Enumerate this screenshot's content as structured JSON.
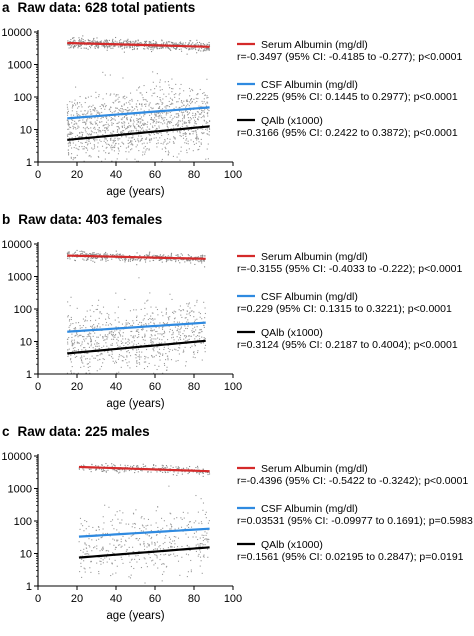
{
  "panels": [
    {
      "letter": "a",
      "title": "Raw data: 628 total patients",
      "xlabel": "age (years)",
      "n_points": 628,
      "age_range": [
        15,
        88
      ]
    },
    {
      "letter": "b",
      "title": "Raw data: 403 females",
      "xlabel": "age (years)",
      "n_points": 403,
      "age_range": [
        15,
        86
      ]
    },
    {
      "letter": "c",
      "title": "Raw data: 225 males",
      "xlabel": "age (years)",
      "n_points": 225,
      "age_range": [
        21,
        88
      ]
    }
  ],
  "chart_data": [
    {
      "type": "scatter",
      "title": "Raw data: 628 total patients",
      "xlabel": "age (years)",
      "ylabel": "",
      "xlim": [
        0,
        100
      ],
      "ylim": [
        1,
        10000
      ],
      "yscale": "log",
      "xticks": [
        "0",
        "20",
        "40",
        "60",
        "80",
        "100"
      ],
      "yticks": [
        "1",
        "10",
        "100",
        "1000",
        "10000"
      ],
      "grid": false,
      "legend_position": "right",
      "series": [
        {
          "name": "Serum Albumin (mg/dl)",
          "stat": "r=-0.3497 (95% CI: -0.4185 to -0.277); p<0.0001",
          "color": "#d42a2a",
          "fit": {
            "x": [
              15,
              88
            ],
            "y": [
              4600,
              3500
            ]
          },
          "center": 4300,
          "spread": 0.07
        },
        {
          "name": "CSF Albumin (mg/dl)",
          "stat": "r=0.2225 (95% CI: 0.1445 to 0.2977); p<0.0001",
          "color": "#2f8ae0",
          "fit": {
            "x": [
              15,
              88
            ],
            "y": [
              22,
              48
            ]
          },
          "center": 30,
          "spread": 0.42
        },
        {
          "name": "QAlb (x1000)",
          "stat": "r=0.3166 (95% CI: 0.2422 to 0.3872); p<0.0001",
          "color": "#000000",
          "fit": {
            "x": [
              15,
              88
            ],
            "y": [
              4.8,
              12.5
            ]
          },
          "center": 8,
          "spread": 0.4
        }
      ]
    },
    {
      "type": "scatter",
      "title": "Raw data: 403 females",
      "xlabel": "age (years)",
      "ylabel": "",
      "xlim": [
        0,
        100
      ],
      "ylim": [
        1,
        10000
      ],
      "yscale": "log",
      "xticks": [
        "0",
        "20",
        "40",
        "60",
        "80",
        "100"
      ],
      "yticks": [
        "1",
        "10",
        "100",
        "1000",
        "10000"
      ],
      "grid": false,
      "legend_position": "right",
      "series": [
        {
          "name": "Serum Albumin (mg/dl)",
          "stat": "r=-0.3155 (95% CI: -0.4033 to -0.222); p<0.0001",
          "color": "#d42a2a",
          "fit": {
            "x": [
              15,
              86
            ],
            "y": [
              4400,
              3500
            ]
          },
          "center": 4200,
          "spread": 0.07
        },
        {
          "name": "CSF Albumin (mg/dl)",
          "stat": "r=0.229 (95% CI: 0.1315 to 0.3221); p<0.0001",
          "color": "#2f8ae0",
          "fit": {
            "x": [
              15,
              86
            ],
            "y": [
              20,
              38
            ]
          },
          "center": 28,
          "spread": 0.4
        },
        {
          "name": "QAlb (x1000)",
          "stat": "r=0.3124 (95% CI: 0.2187 to 0.4004); p<0.0001",
          "color": "#000000",
          "fit": {
            "x": [
              15,
              86
            ],
            "y": [
              4.3,
              10.5
            ]
          },
          "center": 7,
          "spread": 0.38
        }
      ]
    },
    {
      "type": "scatter",
      "title": "Raw data: 225 males",
      "xlabel": "age (years)",
      "ylabel": "",
      "xlim": [
        0,
        100
      ],
      "ylim": [
        1,
        10000
      ],
      "yscale": "log",
      "xticks": [
        "0",
        "20",
        "40",
        "60",
        "80",
        "100"
      ],
      "yticks": [
        "1",
        "10",
        "100",
        "1000",
        "10000"
      ],
      "grid": false,
      "legend_position": "right",
      "series": [
        {
          "name": "Serum Albumin (mg/dl)",
          "stat": "r=-0.4396 (95% CI: -0.5422 to -0.3242); p<0.0001",
          "color": "#d42a2a",
          "fit": {
            "x": [
              21,
              88
            ],
            "y": [
              4600,
              3400
            ]
          },
          "center": 4200,
          "spread": 0.07
        },
        {
          "name": "CSF Albumin (mg/dl)",
          "stat": "r=0.03531 (95% CI: -0.09977 to 0.1691); p=0.5983",
          "color": "#2f8ae0",
          "fit": {
            "x": [
              21,
              88
            ],
            "y": [
              33,
              58
            ]
          },
          "center": 42,
          "spread": 0.4
        },
        {
          "name": "QAlb (x1000)",
          "stat": "r=0.1561 (95% CI: 0.02195 to 0.2847); p=0.0191",
          "color": "#000000",
          "fit": {
            "x": [
              21,
              88
            ],
            "y": [
              7.5,
              15.5
            ]
          },
          "center": 10,
          "spread": 0.36
        }
      ]
    }
  ]
}
